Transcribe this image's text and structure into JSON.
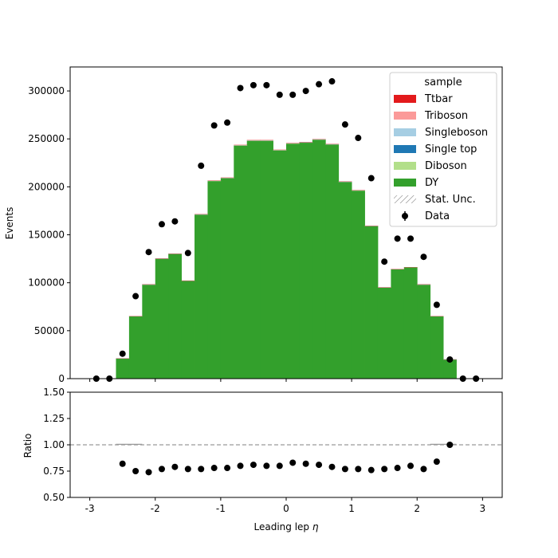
{
  "chart_data": {
    "type": "bar",
    "xlabel": "Leading lep η",
    "xlabel_plain": "Leading lep ",
    "xlabel_symbol": "η",
    "xlim": [
      -3.3,
      3.3
    ],
    "x_ticks": [
      -3,
      -2,
      -1,
      0,
      1,
      2,
      3
    ],
    "bin_edges": [
      -3.0,
      -2.8,
      -2.6,
      -2.4,
      -2.2,
      -2.0,
      -1.8,
      -1.6,
      -1.4,
      -1.2,
      -1.0,
      -0.8,
      -0.6,
      -0.4,
      -0.2,
      0.0,
      0.2,
      0.4,
      0.6,
      0.8,
      1.0,
      1.2,
      1.4,
      1.6,
      1.8,
      2.0,
      2.2,
      2.4,
      2.6,
      2.8,
      3.0
    ],
    "bin_centers": [
      -2.9,
      -2.7,
      -2.5,
      -2.3,
      -2.1,
      -1.9,
      -1.7,
      -1.5,
      -1.3,
      -1.1,
      -0.9,
      -0.7,
      -0.5,
      -0.3,
      -0.1,
      0.1,
      0.3,
      0.5,
      0.7,
      0.9,
      1.1,
      1.3,
      1.5,
      1.7,
      1.9,
      2.1,
      2.3,
      2.5,
      2.7,
      2.9
    ],
    "main_panel": {
      "ylabel": "Events",
      "ylim": [
        0,
        325000
      ],
      "y_ticks": [
        0,
        50000,
        100000,
        150000,
        200000,
        250000,
        300000
      ],
      "y_tick_labels": [
        "0",
        "50000",
        "100000",
        "150000",
        "200000",
        "250000",
        "300000"
      ],
      "stack_order_bottom_to_top": [
        "DY",
        "Diboson",
        "Single top",
        "Singleboson",
        "Triboson",
        "Ttbar"
      ],
      "series": [
        {
          "name": "DY",
          "color": "#33a02c",
          "values": [
            0,
            0,
            21000,
            65000,
            98000,
            125000,
            130000,
            102000,
            171000,
            206000,
            209000,
            243000,
            248000,
            248000,
            238000,
            245000,
            246000,
            249000,
            244000,
            205000,
            196000,
            159000,
            95000,
            114000,
            116000,
            98000,
            65000,
            20000,
            0,
            0
          ]
        },
        {
          "name": "Diboson",
          "color": "#b2df8a",
          "values": [
            0,
            0,
            30,
            90,
            130,
            170,
            180,
            140,
            230,
            280,
            290,
            330,
            340,
            340,
            330,
            340,
            340,
            340,
            330,
            280,
            270,
            220,
            130,
            160,
            160,
            130,
            90,
            30,
            0,
            0
          ]
        },
        {
          "name": "Single top",
          "color": "#1f78b4",
          "values": [
            0,
            0,
            10,
            40,
            60,
            70,
            80,
            60,
            100,
            120,
            130,
            150,
            150,
            150,
            140,
            150,
            150,
            150,
            150,
            120,
            120,
            100,
            60,
            70,
            70,
            60,
            40,
            10,
            0,
            0
          ]
        },
        {
          "name": "Singleboson",
          "color": "#a6cee3",
          "values": [
            0,
            0,
            5,
            20,
            30,
            40,
            40,
            30,
            50,
            60,
            60,
            70,
            70,
            70,
            70,
            70,
            70,
            70,
            70,
            60,
            60,
            50,
            30,
            30,
            30,
            30,
            20,
            5,
            0,
            0
          ]
        },
        {
          "name": "Triboson",
          "color": "#fb9a99",
          "values": [
            0,
            0,
            0,
            1,
            1,
            1,
            1,
            1,
            2,
            2,
            2,
            2,
            2,
            2,
            2,
            2,
            2,
            2,
            2,
            2,
            2,
            1,
            1,
            1,
            1,
            1,
            1,
            0,
            0,
            0
          ]
        },
        {
          "name": "Ttbar",
          "color": "#e31a1c",
          "values": [
            0,
            0,
            20,
            60,
            90,
            110,
            120,
            90,
            150,
            180,
            190,
            220,
            220,
            220,
            210,
            220,
            220,
            220,
            220,
            180,
            170,
            140,
            90,
            100,
            100,
            90,
            60,
            20,
            0,
            0
          ]
        }
      ],
      "data": {
        "name": "Data",
        "values": [
          0,
          0,
          26000,
          86000,
          132000,
          161000,
          164000,
          131000,
          222000,
          264000,
          267000,
          303000,
          306000,
          306000,
          296000,
          296000,
          300000,
          307000,
          310000,
          265000,
          251000,
          209000,
          122000,
          146000,
          146000,
          127000,
          77000,
          20000,
          0,
          0
        ]
      },
      "legend": {
        "title": "sample",
        "placement": "top-right",
        "entries": [
          {
            "label": "Ttbar",
            "kind": "patch",
            "color": "#e31a1c"
          },
          {
            "label": "Triboson",
            "kind": "patch",
            "color": "#fb9a99"
          },
          {
            "label": "Singleboson",
            "kind": "patch",
            "color": "#a6cee3"
          },
          {
            "label": "Single top",
            "kind": "patch",
            "color": "#1f78b4"
          },
          {
            "label": "Diboson",
            "kind": "patch",
            "color": "#b2df8a"
          },
          {
            "label": "DY",
            "kind": "patch",
            "color": "#33a02c"
          },
          {
            "label": "Stat. Unc.",
            "kind": "hatch",
            "color": "#888888"
          },
          {
            "label": "Data",
            "kind": "errorbar",
            "color": "#000000"
          }
        ]
      }
    },
    "ratio_panel": {
      "ylabel": "Ratio",
      "ylim": [
        0.5,
        1.5
      ],
      "y_ticks": [
        0.5,
        0.75,
        1.0,
        1.25,
        1.5
      ],
      "y_tick_labels": [
        "0.50",
        "0.75",
        "1.00",
        "1.25",
        "1.50"
      ],
      "reference_line": 1.0,
      "values": [
        null,
        null,
        0.82,
        0.75,
        0.74,
        0.77,
        0.79,
        0.77,
        0.77,
        0.78,
        0.78,
        0.8,
        0.81,
        0.8,
        0.8,
        0.83,
        0.82,
        0.81,
        0.79,
        0.77,
        0.77,
        0.76,
        0.77,
        0.78,
        0.8,
        0.77,
        0.84,
        1.0,
        null,
        null
      ]
    }
  }
}
